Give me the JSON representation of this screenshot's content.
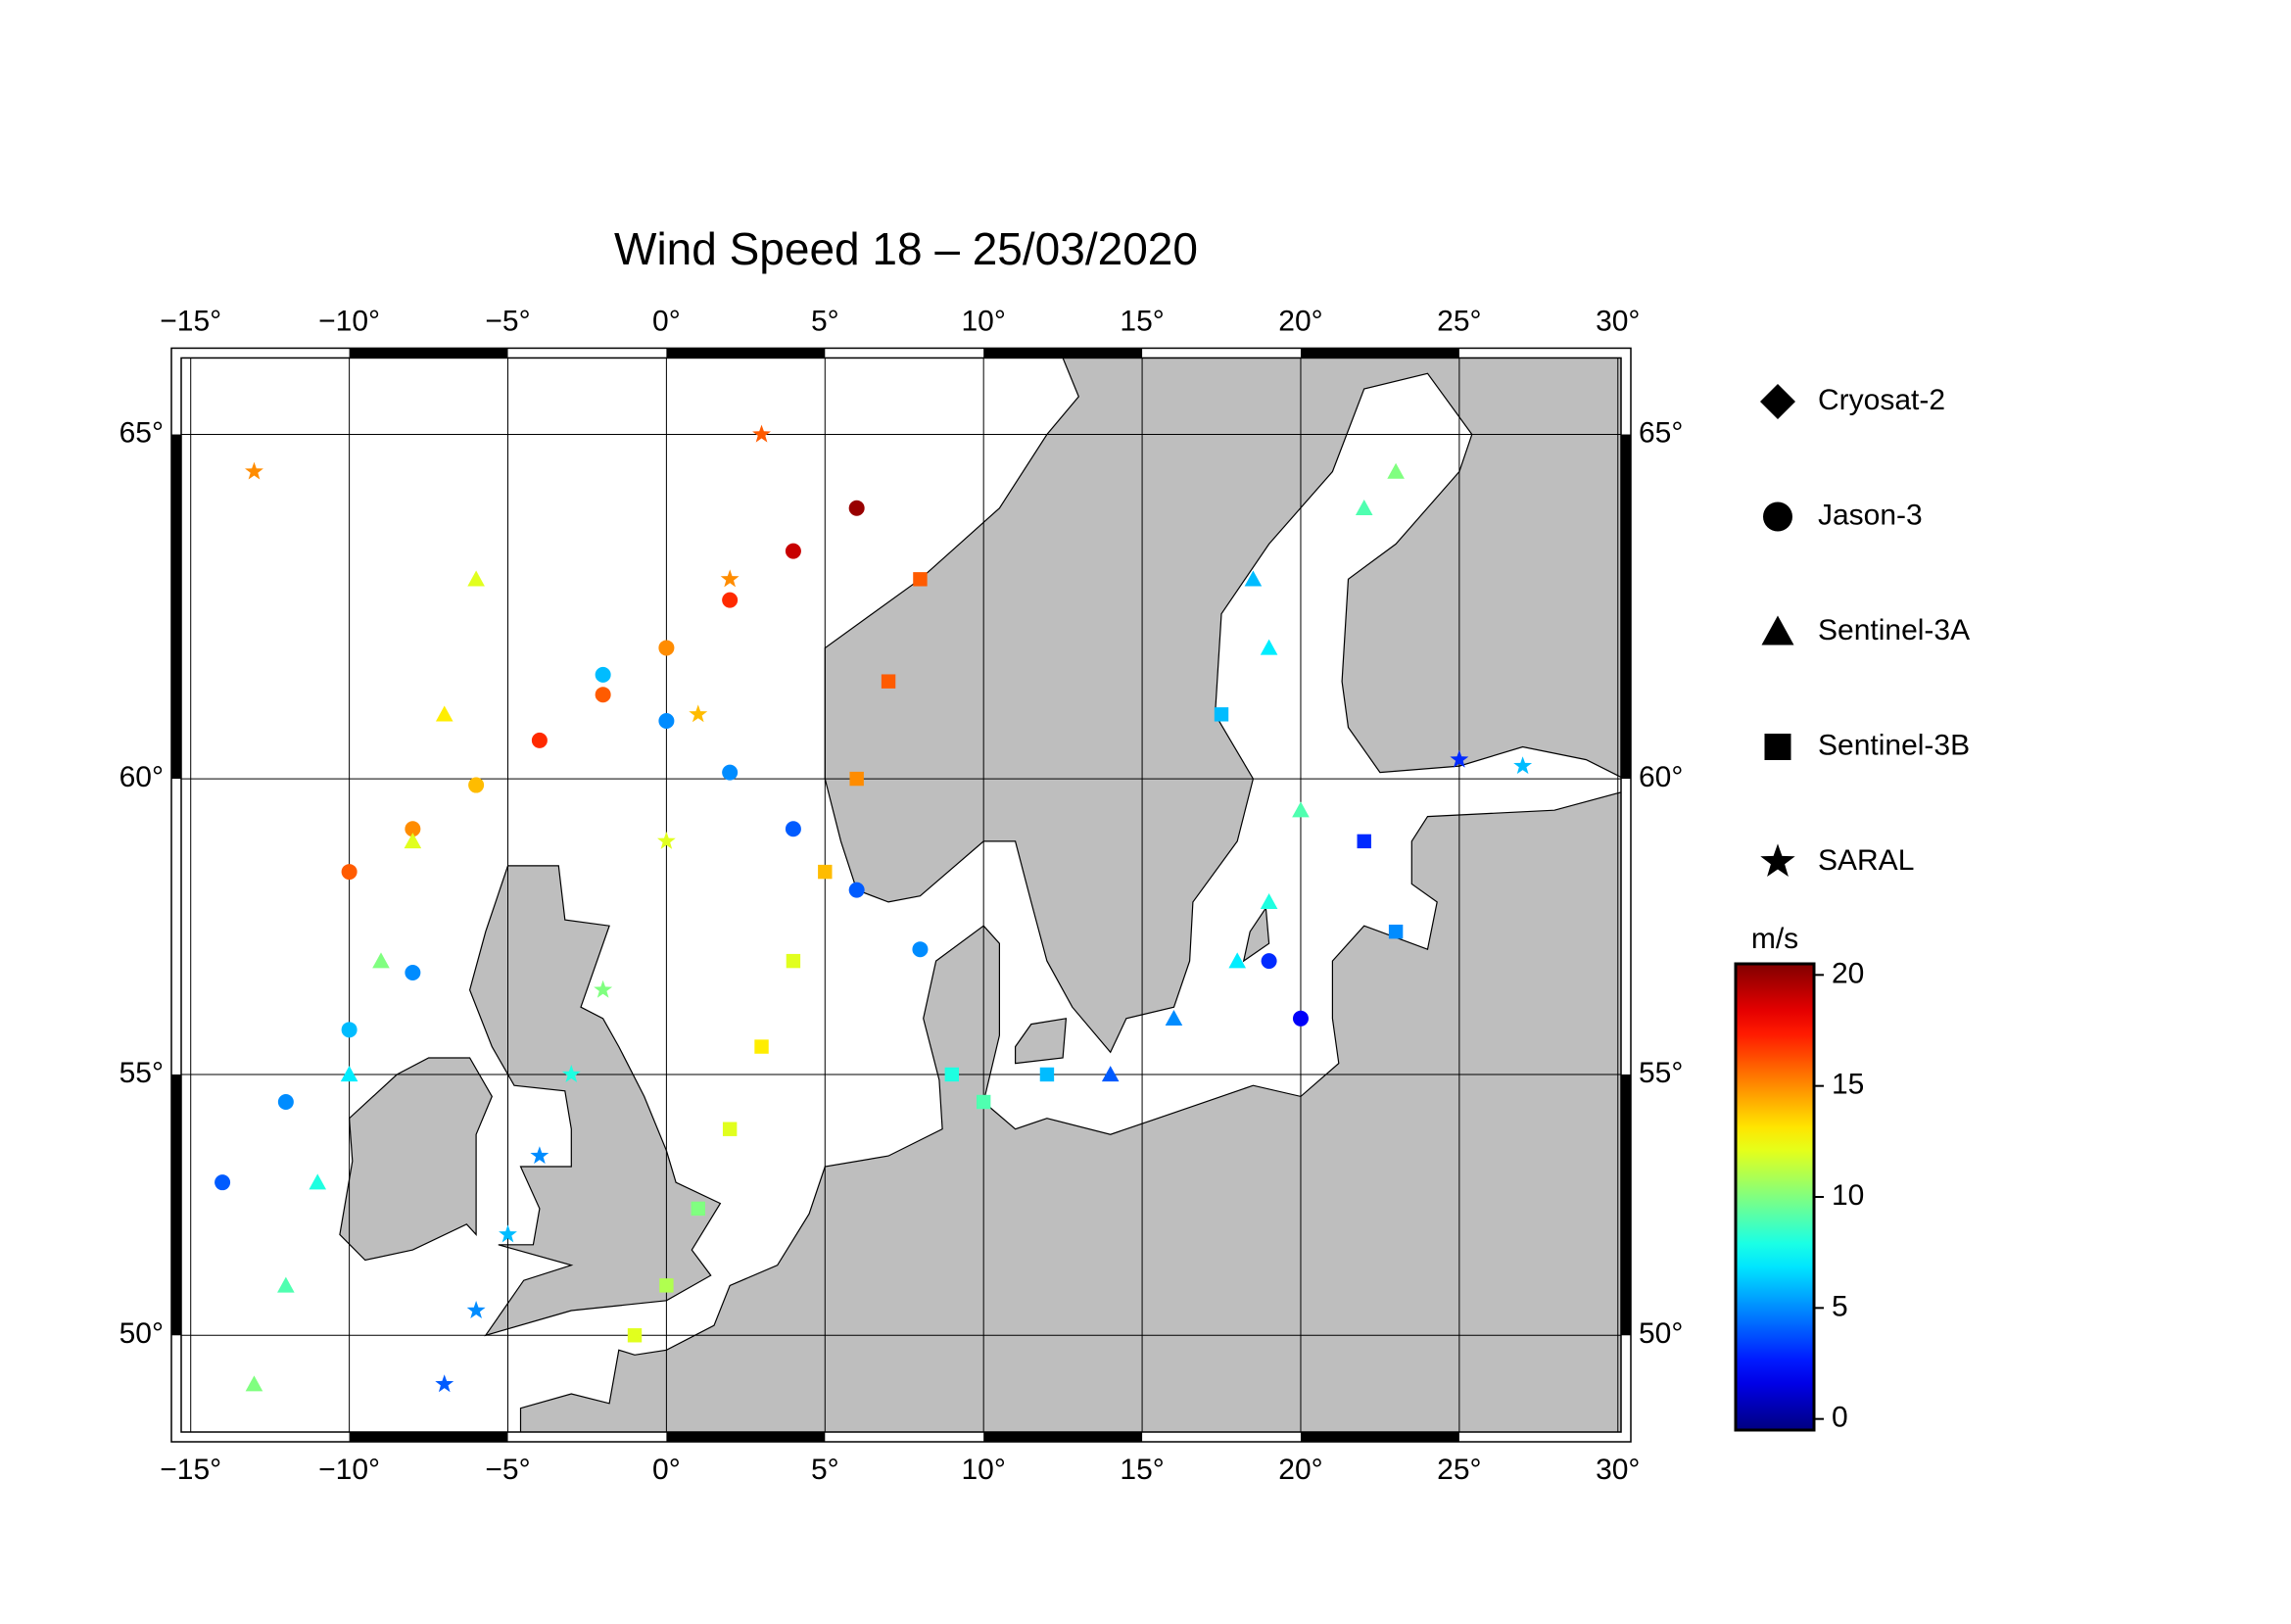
{
  "chart_data": {
    "type": "map",
    "title": "Wind Speed 18 – 25/03/2020",
    "projection": "mercator",
    "xlim": [
      -15.3,
      30.1
    ],
    "ylim": [
      48,
      66
    ],
    "xticks": [
      {
        "value": -15,
        "label": "−15°"
      },
      {
        "value": -10,
        "label": "−10°"
      },
      {
        "value": -5,
        "label": "−5°"
      },
      {
        "value": 0,
        "label": "0°"
      },
      {
        "value": 5,
        "label": "5°"
      },
      {
        "value": 10,
        "label": "10°"
      },
      {
        "value": 15,
        "label": "15°"
      },
      {
        "value": 20,
        "label": "20°"
      },
      {
        "value": 25,
        "label": "25°"
      },
      {
        "value": 30,
        "label": "30°"
      }
    ],
    "yticks": [
      {
        "value": 50,
        "label": "50°"
      },
      {
        "value": 55,
        "label": "55°"
      },
      {
        "value": 60,
        "label": "60°"
      },
      {
        "value": 65,
        "label": "65°"
      }
    ],
    "grid": true,
    "land_color": "#bebebe",
    "colormap": "jet",
    "colorbar": {
      "label": "m/s",
      "clim": [
        -0.5,
        20.5
      ],
      "ticks": [
        0,
        5,
        10,
        15,
        20
      ]
    },
    "series": [
      {
        "name": "Cryosat-2",
        "marker": "diamond",
        "lon": [],
        "lat": [],
        "values": []
      },
      {
        "name": "Jason-3",
        "marker": "circle",
        "lon": [
          -10,
          -8,
          -6,
          -4,
          -2,
          0,
          2,
          4,
          6,
          -2,
          0,
          2,
          4,
          6,
          8,
          -14,
          -12,
          -10,
          -8,
          19,
          20
        ],
        "lat": [
          58.5,
          59.2,
          59.9,
          60.6,
          61.3,
          62,
          62.7,
          63.4,
          64,
          61.6,
          60.9,
          60.1,
          59.2,
          58.2,
          57.2,
          53,
          54.5,
          55.8,
          56.8,
          57,
          56
        ],
        "values": [
          16,
          15,
          14,
          17,
          16,
          15,
          17,
          19,
          20,
          6,
          5,
          5,
          4,
          4,
          5,
          4,
          5,
          6,
          5,
          3,
          2
        ]
      },
      {
        "name": "Sentinel-3A",
        "marker": "triangle",
        "lon": [
          -13,
          -12,
          -11,
          -10,
          -9,
          -8,
          -7,
          -6,
          14,
          16,
          18,
          19,
          20,
          19,
          18.5,
          22,
          23
        ],
        "lat": [
          49,
          51,
          53,
          55,
          57,
          59,
          61,
          63,
          55,
          56,
          57,
          58,
          59.5,
          62,
          63,
          64,
          64.5
        ],
        "values": [
          10,
          9,
          8,
          7,
          10,
          12,
          13,
          12,
          4,
          5,
          7,
          8,
          9,
          7,
          6,
          9,
          10
        ]
      },
      {
        "name": "Sentinel-3B",
        "marker": "square",
        "lon": [
          -1,
          0,
          1,
          2,
          3,
          4,
          5,
          6,
          7,
          8,
          9,
          10,
          12,
          17.5,
          22,
          23
        ],
        "lat": [
          50,
          51,
          52.5,
          54,
          55.5,
          57,
          58.5,
          60,
          61.5,
          63,
          55,
          54.5,
          55,
          61,
          59,
          57.5
        ],
        "values": [
          12,
          11,
          10,
          12,
          13,
          12,
          14,
          15,
          16,
          16,
          8,
          9,
          6,
          6,
          3,
          5
        ]
      },
      {
        "name": "SARAL",
        "marker": "star",
        "lon": [
          -7,
          -6,
          -5,
          -4,
          -3,
          -2,
          0,
          1,
          2,
          3,
          25,
          27,
          -13
        ],
        "lat": [
          49,
          50.5,
          52,
          53.5,
          55,
          56.5,
          59,
          61,
          63,
          65,
          60.3,
          60.2,
          64.5
        ],
        "values": [
          4,
          5,
          6,
          5,
          8,
          10,
          12,
          14,
          15,
          16,
          3,
          6,
          15
        ]
      }
    ]
  }
}
